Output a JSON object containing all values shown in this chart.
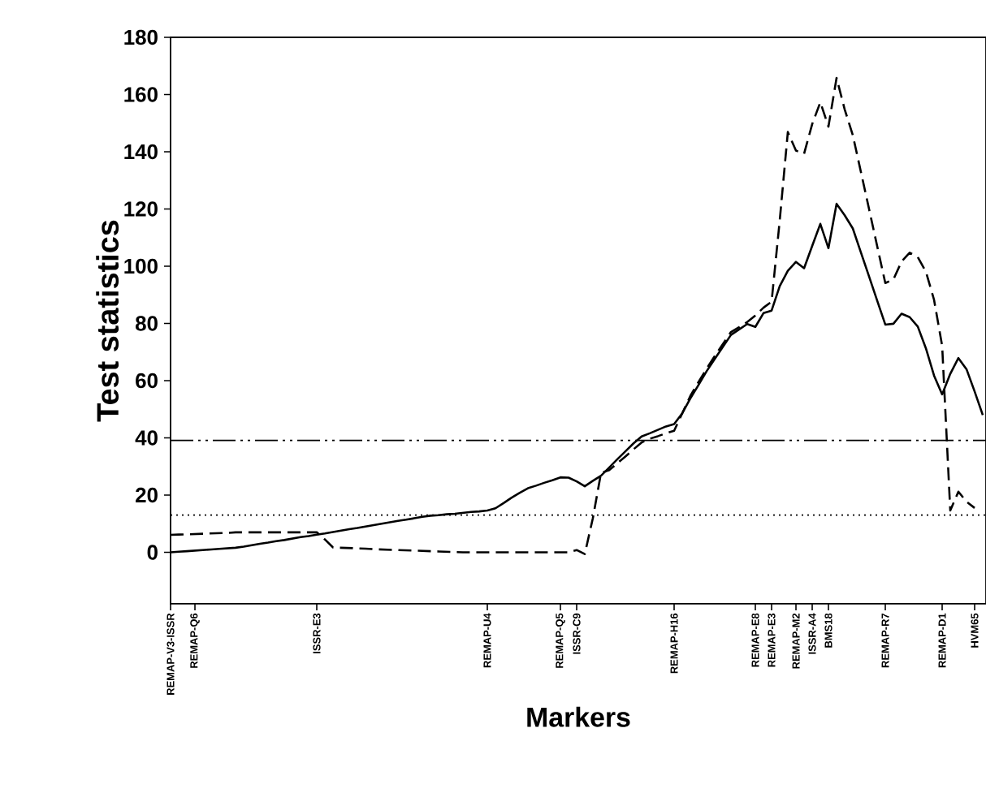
{
  "chart_data": {
    "type": "line",
    "xlabel": "Markers",
    "ylabel": "Test statistics",
    "ylim": [
      -18,
      180
    ],
    "yticks": [
      0,
      20,
      40,
      60,
      80,
      100,
      120,
      140,
      160,
      180
    ],
    "categories": [
      "REMAP-V3-ISSR",
      null,
      null,
      "REMAP-Q6",
      null,
      null,
      null,
      null,
      null,
      null,
      null,
      null,
      null,
      null,
      null,
      null,
      null,
      null,
      "ISSR-E3",
      null,
      null,
      null,
      null,
      null,
      null,
      null,
      null,
      null,
      null,
      null,
      null,
      null,
      null,
      null,
      null,
      null,
      null,
      null,
      null,
      "REMAP-U4",
      null,
      null,
      null,
      null,
      null,
      null,
      null,
      null,
      "REMAP-Q5",
      null,
      "ISSR-C9",
      null,
      null,
      null,
      null,
      null,
      null,
      null,
      null,
      null,
      null,
      null,
      "REMAP-H16",
      null,
      null,
      null,
      null,
      null,
      null,
      null,
      null,
      null,
      "REMAP-E8",
      null,
      "REMAP-E3",
      null,
      null,
      "REMAP-M2",
      null,
      "ISSR-A4",
      null,
      "BMS18",
      null,
      null,
      null,
      null,
      null,
      null,
      "REMAP-R7",
      null,
      null,
      null,
      null,
      null,
      null,
      "REMAP-D1",
      null,
      null,
      null,
      "HVM65",
      null
    ],
    "ref_lines": [
      {
        "axis": "y",
        "value": 39.1,
        "line_style": "dashdotdot",
        "color": "#000000"
      },
      {
        "axis": "y",
        "value": 13.0,
        "line_style": "dotted",
        "color": "#000000"
      }
    ],
    "series": [
      {
        "color": "#000000",
        "line_style": "solid",
        "values": [
          0,
          0.2,
          0.4,
          0.6,
          0.8,
          1.0,
          1.2,
          1.4,
          1.6,
          2.0,
          2.5,
          3.0,
          3.4,
          3.9,
          4.3,
          4.8,
          5.3,
          5.7,
          6.2,
          6.6,
          7.1,
          7.6,
          8.1,
          8.5,
          9.0,
          9.5,
          10.0,
          10.5,
          11.0,
          11.4,
          11.9,
          12.4,
          12.8,
          13.0,
          13.3,
          13.5,
          13.8,
          14.1,
          14.3,
          14.6,
          15.4,
          17.2,
          19.1,
          20.8,
          22.4,
          23.3,
          24.3,
          25.2,
          26.2,
          26.1,
          24.8,
          23.1,
          25.0,
          26.8,
          29.6,
          32.5,
          35.3,
          38.1,
          40.5,
          41.6,
          42.8,
          44.0,
          44.8,
          48.6,
          53.8,
          58.5,
          63.3,
          67.6,
          71.8,
          76.0,
          77.9,
          79.8,
          78.8,
          83.6,
          84.5,
          93.0,
          98.4,
          101.5,
          99.3,
          107.1,
          114.8,
          106.3,
          121.8,
          117.8,
          113.2,
          104.8,
          96.4,
          88.0,
          79.6,
          79.9,
          83.4,
          82.2,
          78.9,
          71.3,
          61.8,
          55.2,
          62.4,
          67.9,
          64.0,
          56.2,
          48.0
        ]
      },
      {
        "color": "#000000",
        "line_style": "dashed",
        "values": [
          6.1,
          6.2,
          6.3,
          6.4,
          6.5,
          6.6,
          6.7,
          6.8,
          7.0,
          7.0,
          7.0,
          7.0,
          7.0,
          7.0,
          7.0,
          7.0,
          7.0,
          7.0,
          7.0,
          4.5,
          1.7,
          1.6,
          1.5,
          1.4,
          1.3,
          1.1,
          1.0,
          0.9,
          0.8,
          0.7,
          0.6,
          0.5,
          0.4,
          0.3,
          0.2,
          0.1,
          0,
          0,
          0,
          0,
          0,
          0,
          0,
          0,
          0,
          0,
          0,
          0,
          0,
          0,
          0.8,
          -0.6,
          12.0,
          27.8,
          28.7,
          31.1,
          33.5,
          36.0,
          38.4,
          39.7,
          40.6,
          41.6,
          42.5,
          48.6,
          54.7,
          59.5,
          64.2,
          68.6,
          72.8,
          77.0,
          78.7,
          80.5,
          82.8,
          85.5,
          87.6,
          115.9,
          146.9,
          140.4,
          139.3,
          149.7,
          157.3,
          148.8,
          165.8,
          154.8,
          145.8,
          132.9,
          120.0,
          107.0,
          94.1,
          95.4,
          101.6,
          104.7,
          103.2,
          98.1,
          88.3,
          72.2,
          14.6,
          21.2,
          17.7,
          15.5,
          null
        ]
      }
    ]
  }
}
